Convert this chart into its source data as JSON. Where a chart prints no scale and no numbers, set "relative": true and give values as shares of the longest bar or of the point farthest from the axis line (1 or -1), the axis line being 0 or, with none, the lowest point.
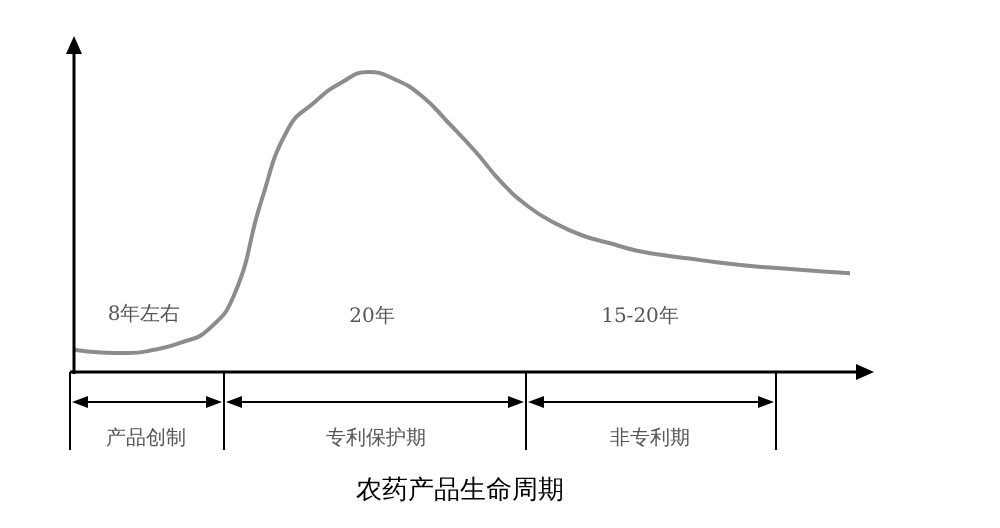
{
  "chart_data": {
    "type": "line",
    "title": "农药产品生命周期",
    "categories": [
      null,
      null,
      null,
      null,
      null,
      null,
      null,
      null,
      null,
      null,
      null,
      null,
      null,
      null,
      null,
      null,
      null,
      null,
      null,
      null,
      null,
      null,
      null,
      null,
      null,
      null,
      null,
      null,
      null,
      null
    ],
    "values": [
      0.074,
      0.065,
      0.063,
      0.074,
      0.098,
      0.14,
      0.26,
      0.57,
      0.81,
      0.9,
      0.965,
      1.0,
      0.975,
      0.92,
      0.83,
      0.735,
      0.63,
      0.55,
      0.495,
      0.455,
      0.43,
      0.405,
      0.39,
      0.378,
      0.366,
      0.356,
      0.348,
      0.342,
      0.335,
      0.329
    ],
    "color": "#8c8c8c",
    "relative": true,
    "annotations": [
      "8年左右",
      "20年",
      "15-20年",
      "产品创制",
      "专利保护期",
      "非专利期"
    ]
  }
}
